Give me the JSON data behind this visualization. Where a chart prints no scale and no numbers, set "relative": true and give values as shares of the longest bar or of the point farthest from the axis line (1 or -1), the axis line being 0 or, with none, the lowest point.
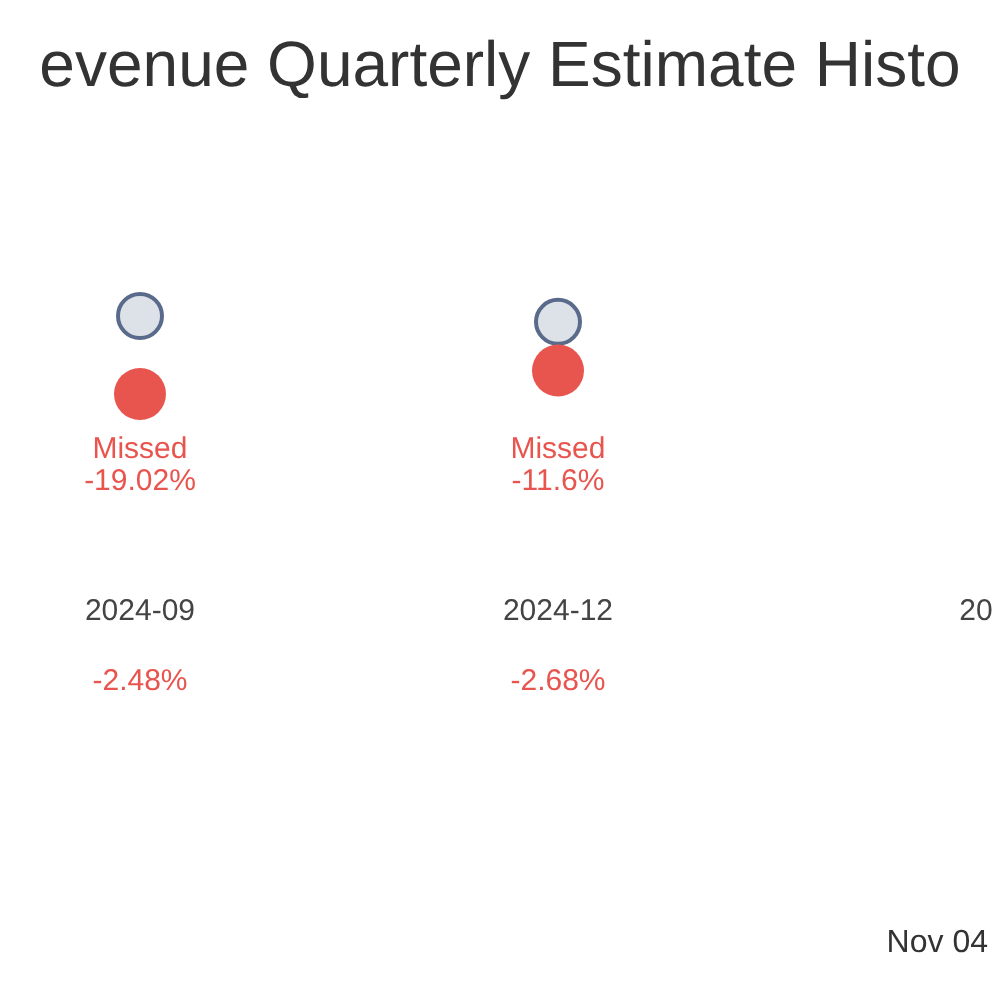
{
  "chart_data": {
    "type": "scatter",
    "title": "evenue Quarterly Estimate Histo",
    "relative": true,
    "categories": [
      "2024-09",
      "2024-12",
      "20"
    ],
    "series": [
      {
        "color": "#dde1e8",
        "values": [
          1,
          0.925,
          null
        ]
      },
      {
        "color": "#e8554e",
        "values": [
          0,
          0.3,
          null
        ]
      }
    ],
    "annotations": [
      "Missed",
      "-19.02%",
      "Missed",
      "-11.6%",
      "-2.48%",
      "-2.68%",
      "Nov 04"
    ],
    "marker": "circle",
    "grid": false,
    "legend": false
  }
}
